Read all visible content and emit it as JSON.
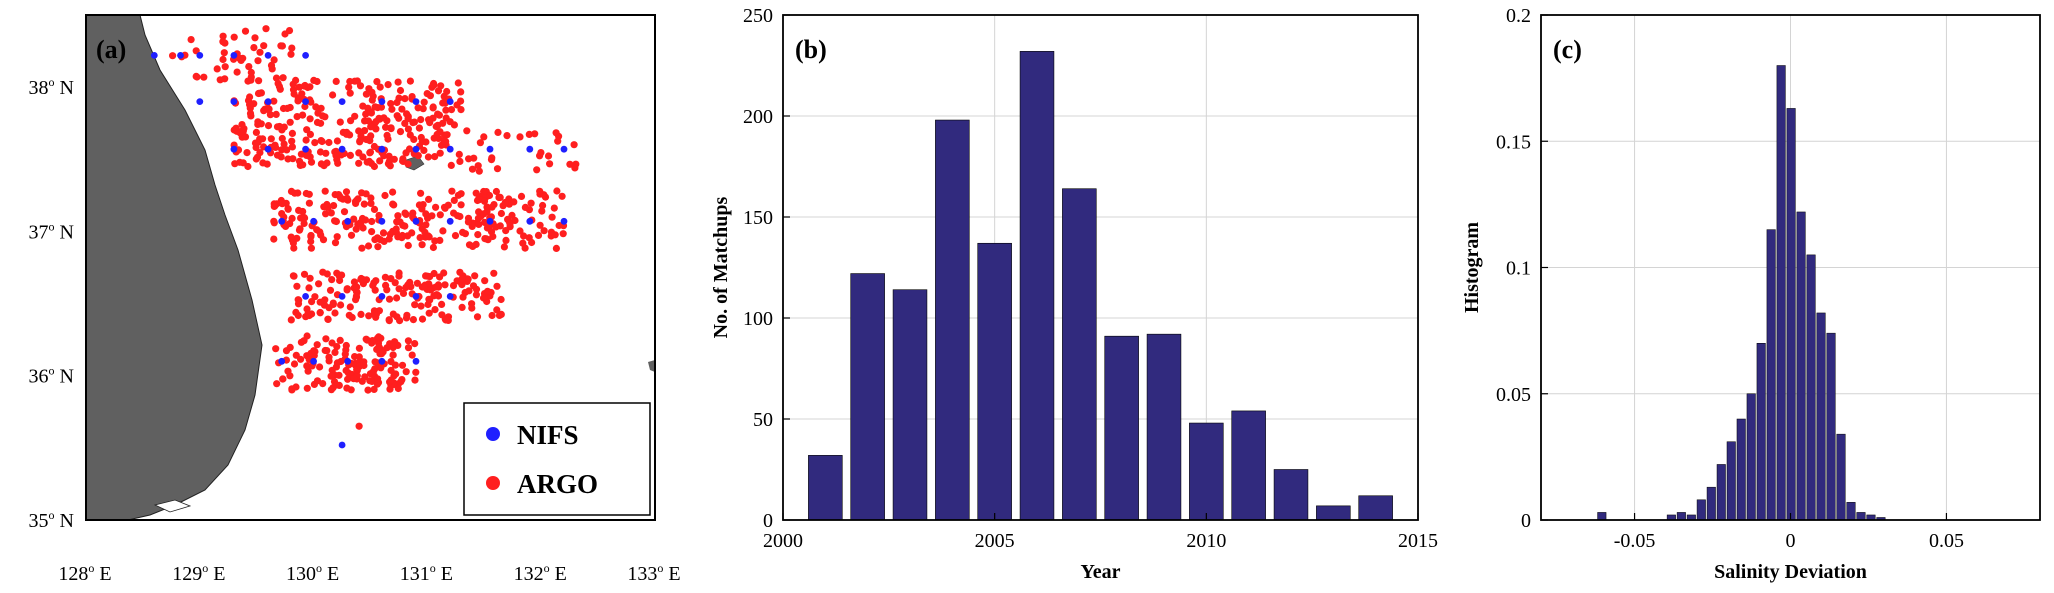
{
  "chart_data": [
    {
      "type": "scatter",
      "panel_label": "(a)",
      "x_ticks": [
        "128",
        "129",
        "130",
        "131",
        "132",
        "133"
      ],
      "x_unit": "E",
      "y_ticks": [
        "35",
        "36",
        "37",
        "38"
      ],
      "y_unit": "N",
      "xlim": [
        128,
        133
      ],
      "ylim": [
        35,
        38.5
      ],
      "legend": [
        {
          "name": "NIFS",
          "color": "#1f1fff"
        },
        {
          "name": "ARGO",
          "color": "#ff1f1f"
        }
      ],
      "legend_position": "bottom-right",
      "land_color": "#606060",
      "nifs_points": [
        [
          128.6,
          38.22
        ],
        [
          128.83,
          38.22
        ],
        [
          129.0,
          38.22
        ],
        [
          129.3,
          38.22
        ],
        [
          129.6,
          38.22
        ],
        [
          129.93,
          38.22
        ],
        [
          129.0,
          37.9
        ],
        [
          129.3,
          37.9
        ],
        [
          129.6,
          37.9
        ],
        [
          129.93,
          37.9
        ],
        [
          130.25,
          37.9
        ],
        [
          130.6,
          37.9
        ],
        [
          130.9,
          37.9
        ],
        [
          131.2,
          37.9
        ],
        [
          129.3,
          37.57
        ],
        [
          129.6,
          37.57
        ],
        [
          129.93,
          37.57
        ],
        [
          130.25,
          37.57
        ],
        [
          130.6,
          37.57
        ],
        [
          130.9,
          37.57
        ],
        [
          131.2,
          37.57
        ],
        [
          131.55,
          37.57
        ],
        [
          131.9,
          37.57
        ],
        [
          132.2,
          37.57
        ],
        [
          129.72,
          37.07
        ],
        [
          130.0,
          37.07
        ],
        [
          130.3,
          37.07
        ],
        [
          130.6,
          37.07
        ],
        [
          130.9,
          37.07
        ],
        [
          131.2,
          37.07
        ],
        [
          131.55,
          37.07
        ],
        [
          131.9,
          37.07
        ],
        [
          132.2,
          37.07
        ],
        [
          129.93,
          36.55
        ],
        [
          130.25,
          36.55
        ],
        [
          130.6,
          36.55
        ],
        [
          130.9,
          36.55
        ],
        [
          131.2,
          36.55
        ],
        [
          129.72,
          36.1
        ],
        [
          130.0,
          36.1
        ],
        [
          130.3,
          36.1
        ],
        [
          130.6,
          36.1
        ],
        [
          130.9,
          36.1
        ],
        [
          130.25,
          35.52
        ]
      ]
    },
    {
      "type": "bar",
      "panel_label": "(b)",
      "xlabel": "Year",
      "ylabel": "No. of Matchups",
      "xlim": [
        2000,
        2015
      ],
      "ylim": [
        0,
        250
      ],
      "x_ticks": [
        2000,
        2005,
        2010,
        2015
      ],
      "y_ticks": [
        0,
        50,
        100,
        150,
        200,
        250
      ],
      "grid": true,
      "bar_color": "#312a7e",
      "categories": [
        2001,
        2002,
        2003,
        2004,
        2005,
        2006,
        2007,
        2008,
        2009,
        2010,
        2011,
        2012,
        2013,
        2014
      ],
      "values": [
        32,
        122,
        114,
        198,
        137,
        232,
        164,
        91,
        92,
        48,
        54,
        25,
        7,
        12
      ]
    },
    {
      "type": "bar",
      "panel_label": "(c)",
      "xlabel": "Salinity Deviation",
      "ylabel": "Histogram",
      "xlim": [
        -0.08,
        0.08
      ],
      "ylim": [
        0,
        0.2
      ],
      "x_ticks": [
        "-0.05",
        "0",
        "0.05"
      ],
      "x_tick_values": [
        -0.05,
        0,
        0.05
      ],
      "y_ticks": [
        "0",
        "0.05",
        "0.1",
        "0.15",
        "0.2"
      ],
      "y_tick_values": [
        0,
        0.05,
        0.1,
        0.15,
        0.2
      ],
      "grid": true,
      "bar_color": "#312a7e",
      "bin_width": 0.0032,
      "bin_centers": [
        -0.0605,
        -0.0478,
        -0.0446,
        -0.0414,
        -0.0382,
        -0.035,
        -0.0318,
        -0.0286,
        -0.0254,
        -0.0222,
        -0.019,
        -0.0158,
        -0.0126,
        -0.0094,
        -0.0062,
        -0.003,
        0.0002,
        0.0034,
        0.0066,
        0.0098,
        0.013,
        0.0162,
        0.0194,
        0.0226,
        0.0258,
        0.029
      ],
      "values": [
        0.003,
        0.0,
        0.0,
        0.0,
        0.002,
        0.003,
        0.002,
        0.008,
        0.013,
        0.022,
        0.031,
        0.04,
        0.05,
        0.07,
        0.115,
        0.18,
        0.163,
        0.122,
        0.105,
        0.082,
        0.074,
        0.034,
        0.007,
        0.003,
        0.002,
        0.001
      ]
    }
  ]
}
